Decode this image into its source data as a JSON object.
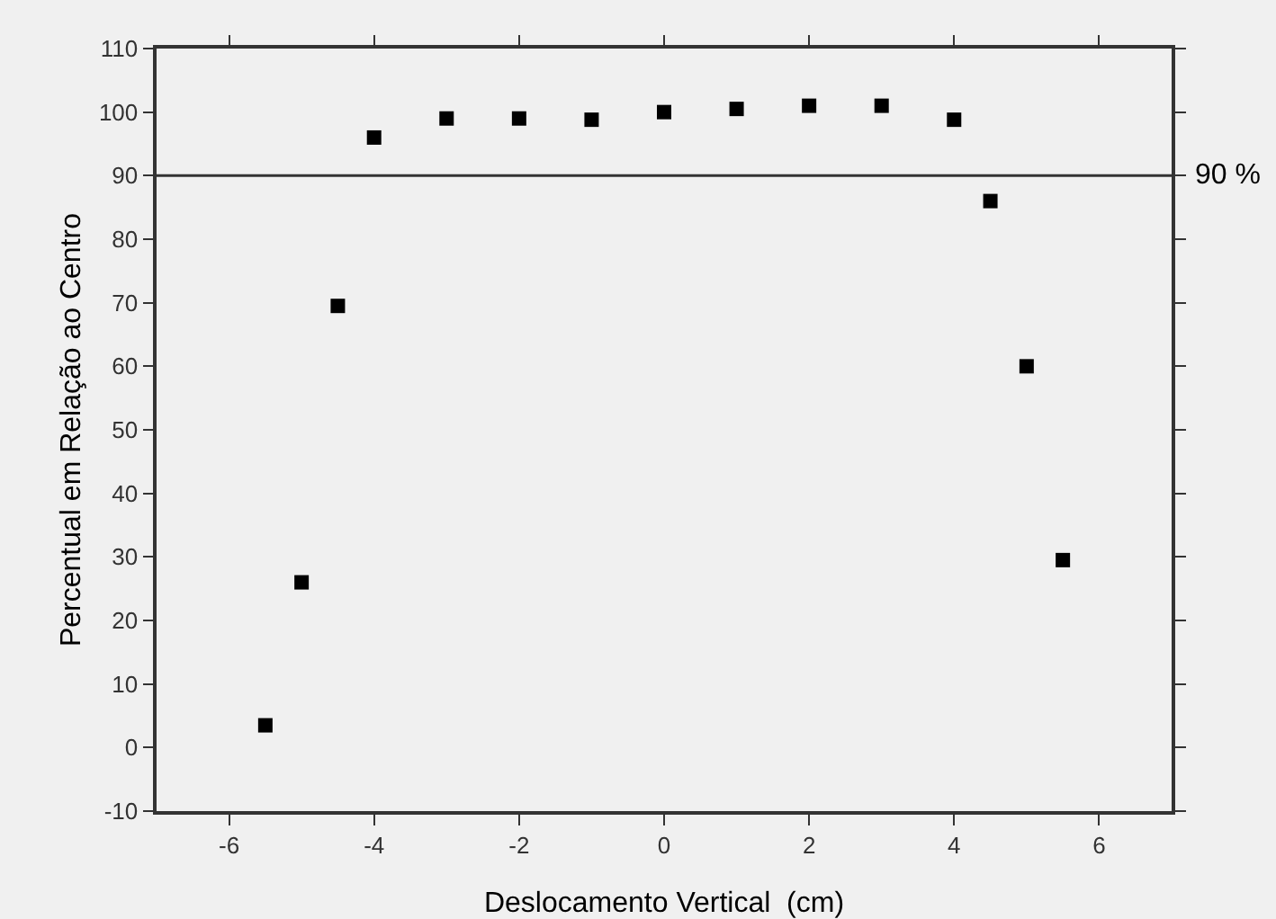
{
  "chart_data": {
    "type": "scatter",
    "xlabel": "Deslocamento Vertical  (cm)",
    "ylabel": "Percentual em Relação ao Centro",
    "x": [
      -5.5,
      -5,
      -4.5,
      -4,
      -3,
      -2,
      -1,
      0,
      1,
      2,
      3,
      4,
      4.5,
      5,
      5.5
    ],
    "series": [
      {
        "color": "#000000",
        "values": [
          3.5,
          26,
          69.5,
          96,
          99,
          99,
          98.8,
          100,
          100.5,
          101,
          101,
          98.8,
          86,
          60,
          29.5
        ]
      }
    ],
    "xlim": [
      -7,
      7
    ],
    "xticks": [
      -6,
      -4,
      -2,
      0,
      2,
      4,
      6
    ],
    "ylim": [
      -10,
      110
    ],
    "yticks": [
      -10,
      0,
      10,
      20,
      30,
      40,
      50,
      60,
      70,
      80,
      90,
      100,
      110
    ],
    "ref_lines": [
      {
        "axis": "y",
        "value": 90,
        "label": "90 %",
        "color": "#333333"
      }
    ],
    "marker": "square",
    "grid": false
  }
}
